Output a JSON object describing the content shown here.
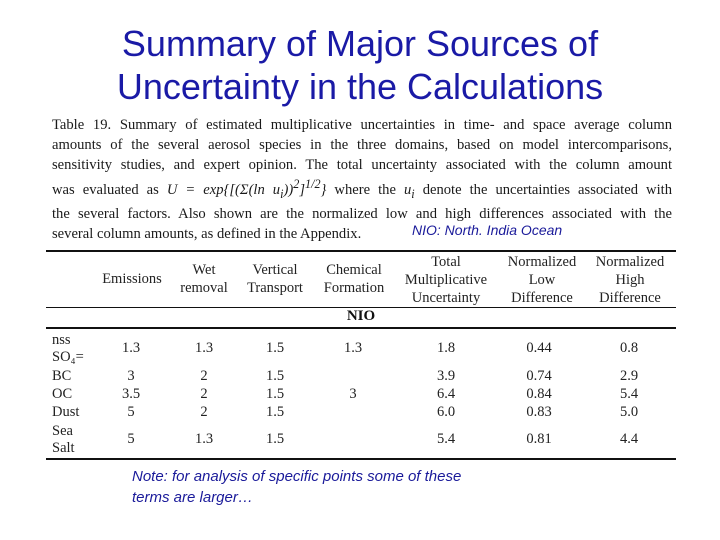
{
  "slide": {
    "title_line1": "Summary of Major Sources of",
    "title_line2": "Uncertainty in the Calculations"
  },
  "caption": {
    "line1": "Table 19.  Summary of estimated multiplicative uncertainties in time- and space average column",
    "line2": "amounts of the several aerosol species in the three domains, based on model intercomparisons,",
    "line3": "sensitivity studies, and expert opinion.  The total uncertainty associated with the column amount",
    "line4a": "was evaluated as",
    "formula": "U = exp{[(Σ(ln u",
    "formula_sub": "i",
    "formula_end": "))",
    "formula_sup1": "2",
    "formula_close": "]",
    "formula_sup2": "1/2",
    "formula_tail": "}",
    "line4b": "where the",
    "ui": "u",
    "ui_sub": "i",
    "line4c": "denote the uncertainties associated with",
    "line5": "the several factors.  Also shown are the normalized low and high differences associated with the",
    "line6": "several column amounts, as defined in the Appendix."
  },
  "nio_note": "NIO: North. India Ocean",
  "table": {
    "headers": [
      [
        "Emissions"
      ],
      [
        "Wet",
        "removal"
      ],
      [
        "Vertical",
        "Transport"
      ],
      [
        "Chemical",
        "Formation"
      ],
      [
        "Total",
        "Multiplicative",
        "Uncertainty"
      ],
      [
        "Normalized",
        "Low",
        "Difference"
      ],
      [
        "Normalized",
        "High",
        "Difference"
      ]
    ],
    "section": "NIO",
    "rows": [
      {
        "label": [
          "nss",
          "SO₄="
        ],
        "values": [
          "1.3",
          "1.3",
          "1.5",
          "1.3",
          "1.8",
          "0.44",
          "0.8"
        ]
      },
      {
        "label": [
          "BC"
        ],
        "values": [
          "3",
          "2",
          "1.5",
          "",
          "3.9",
          "0.74",
          "2.9"
        ]
      },
      {
        "label": [
          "OC"
        ],
        "values": [
          "3.5",
          "2",
          "1.5",
          "3",
          "6.4",
          "0.84",
          "5.4"
        ]
      },
      {
        "label": [
          "Dust"
        ],
        "values": [
          "5",
          "2",
          "1.5",
          "",
          "6.0",
          "0.83",
          "5.0"
        ]
      },
      {
        "label": [
          "Sea",
          "Salt"
        ],
        "values": [
          "5",
          "1.3",
          "1.5",
          "",
          "5.4",
          "0.81",
          "4.4"
        ]
      }
    ]
  },
  "footnote": {
    "line1": "Note: for analysis of specific points some of these",
    "line2": "terms are larger…"
  }
}
